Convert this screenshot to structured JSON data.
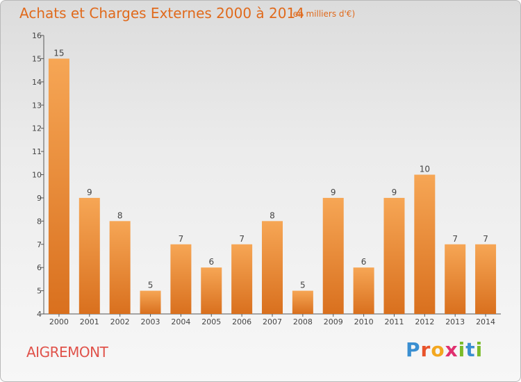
{
  "header": {
    "title": "Achats et Charges Externes 2000 à 2014",
    "subtitle": "(en milliers d'€)"
  },
  "footer": {
    "commune": "AIGREMONT",
    "brand": "Proxiti"
  },
  "colors": {
    "bar_light": "#f6a655",
    "bar_dark": "#d9701e",
    "title": "#e06a1c"
  },
  "chart_data": {
    "type": "bar",
    "title": "Achats et Charges Externes 2000 à 2014",
    "subtitle": "(en milliers d'€)",
    "categories": [
      "2000",
      "2001",
      "2002",
      "2003",
      "2004",
      "2005",
      "2006",
      "2007",
      "2008",
      "2009",
      "2010",
      "2011",
      "2012",
      "2013",
      "2014"
    ],
    "values": [
      15,
      9,
      8,
      5,
      7,
      6,
      7,
      8,
      5,
      9,
      6,
      9,
      10,
      7,
      7
    ],
    "ylim": [
      4,
      16
    ],
    "yticks": [
      4,
      5,
      6,
      7,
      8,
      9,
      10,
      11,
      12,
      13,
      14,
      15,
      16
    ],
    "xlabel": "",
    "ylabel": "",
    "grid": false
  }
}
